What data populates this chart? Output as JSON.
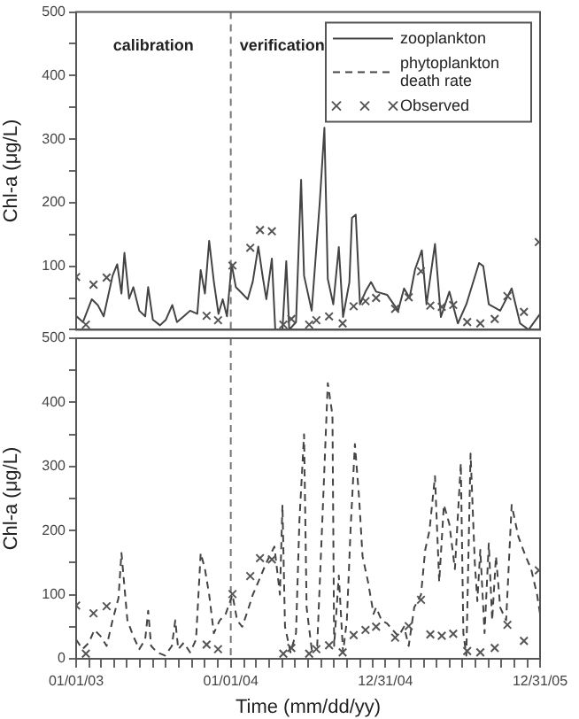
{
  "chart_data": [
    {
      "type": "line",
      "ylabel": "Chl-a (μg/L)",
      "xlim": [
        "2003-01-01",
        "2005-12-31"
      ],
      "ylim": [
        0,
        500
      ],
      "yticks": [
        {
          "value": 0,
          "label": null
        },
        {
          "value": 50,
          "label": null
        },
        100,
        {
          "value": 150,
          "label": null
        },
        200,
        {
          "value": 250,
          "label": null
        },
        300,
        {
          "value": 350,
          "label": null
        },
        400,
        {
          "value": 450,
          "label": null
        },
        500
      ],
      "tick_labels": "y",
      "grid": false,
      "legend": "top right",
      "ref_lines": [
        {
          "axis": "x",
          "value": "2004-01-01",
          "color": "#777777",
          "line_style": "dashed"
        }
      ],
      "annotations": [
        "calibration",
        "verification"
      ],
      "series": [
        {
          "name": "zooplankton",
          "type": "line",
          "line_style": "solid",
          "color": "#444444",
          "x": [
            "2003-01-02",
            "2003-01-17",
            "2003-02-07",
            "2003-02-21",
            "2003-03-07",
            "2003-03-28",
            "2003-04-08",
            "2003-04-18",
            "2003-04-25",
            "2003-05-06",
            "2003-05-16",
            "2003-05-30",
            "2003-06-13",
            "2003-06-20",
            "2003-07-01",
            "2003-07-18",
            "2003-08-01",
            "2003-08-16",
            "2003-08-27",
            "2003-09-12",
            "2003-09-27",
            "2003-10-14",
            "2003-10-22",
            "2003-11-01",
            "2003-11-11",
            "2003-11-22",
            "2003-12-03",
            "2003-12-13",
            "2003-12-23",
            "2004-01-03",
            "2004-01-13",
            "2004-01-28",
            "2004-02-10",
            "2004-02-22",
            "2004-03-06",
            "2004-03-16",
            "2004-03-25",
            "2004-04-07",
            "2004-04-15",
            "2004-05-02",
            "2004-05-11",
            "2004-05-18",
            "2004-06-03",
            "2004-06-15",
            "2004-06-22",
            "2004-07-10",
            "2004-07-29",
            "2004-08-09",
            "2004-08-17",
            "2004-08-30",
            "2004-09-12",
            "2004-09-22",
            "2004-10-07",
            "2004-10-13",
            "2004-10-22",
            "2004-11-01",
            "2004-11-14",
            "2004-11-27",
            "2004-12-09",
            "2005-01-04",
            "2005-01-30",
            "2005-02-13",
            "2005-02-26",
            "2005-03-11",
            "2005-03-27",
            "2005-04-07",
            "2005-04-27",
            "2005-05-11",
            "2005-05-31",
            "2005-06-20",
            "2005-07-10",
            "2005-08-09",
            "2005-08-19",
            "2005-09-01",
            "2005-09-28",
            "2005-10-25",
            "2005-11-14",
            "2005-12-04",
            "2005-12-31"
          ],
          "values": [
            21,
            12,
            48,
            39,
            21,
            85,
            103,
            57,
            121,
            49,
            67,
            30,
            21,
            67,
            16,
            7,
            16,
            39,
            12,
            21,
            30,
            25,
            94,
            57,
            140,
            76,
            25,
            48,
            21,
            103,
            67,
            57,
            48,
            76,
            131,
            85,
            48,
            112,
            0,
            0,
            108,
            0,
            12,
            236,
            85,
            30,
            200,
            318,
            80,
            40,
            130,
            20,
            75,
            176,
            181,
            40,
            60,
            75,
            60,
            55,
            30,
            65,
            50,
            95,
            125,
            40,
            135,
            20,
            60,
            10,
            40,
            105,
            100,
            40,
            30,
            65,
            10,
            0,
            25
          ]
        },
        {
          "name": "Observed",
          "type": "scatter",
          "marker": "cross",
          "color": "#555555",
          "x": [
            "2003-01-01",
            "2003-01-24",
            "2003-02-11",
            "2003-03-14",
            "2003-11-05",
            "2003-12-02",
            "2004-01-05",
            "2004-02-16",
            "2004-03-10",
            "2004-04-07",
            "2004-05-04",
            "2004-05-23",
            "2004-07-04",
            "2004-07-21",
            "2004-08-20",
            "2004-09-21",
            "2004-10-17",
            "2004-11-14",
            "2004-12-09",
            "2005-01-23",
            "2005-02-24",
            "2005-03-25",
            "2005-04-16",
            "2005-05-13",
            "2005-06-09",
            "2005-07-12",
            "2005-08-12",
            "2005-09-15",
            "2005-10-15",
            "2005-11-23",
            "2005-12-28"
          ],
          "values": [
            83,
            8,
            71,
            82,
            22,
            15,
            101,
            129,
            157,
            155,
            8,
            17,
            8,
            15,
            21,
            10,
            37,
            45,
            50,
            33,
            51,
            92,
            38,
            36,
            39,
            12,
            10,
            17,
            53,
            28,
            138
          ]
        }
      ]
    },
    {
      "type": "line",
      "ylabel": "Chl-a (μg/L)",
      "xlabel": "Time (mm/dd/yy)",
      "xlim": [
        "2003-01-01",
        "2005-12-31"
      ],
      "ylim": [
        0,
        500
      ],
      "xticks": [
        {
          "value": "2003-01-01",
          "label": "01/01/03"
        },
        {
          "value": "2003-02-01",
          "label": null
        },
        {
          "value": "2003-03-01",
          "label": null
        },
        {
          "value": "2003-04-01",
          "label": null
        },
        {
          "value": "2003-05-01",
          "label": null
        },
        {
          "value": "2003-06-01",
          "label": null
        },
        {
          "value": "2003-07-01",
          "label": null
        },
        {
          "value": "2003-08-01",
          "label": null
        },
        {
          "value": "2003-09-01",
          "label": null
        },
        {
          "value": "2003-10-01",
          "label": null
        },
        {
          "value": "2003-11-01",
          "label": null
        },
        {
          "value": "2003-12-01",
          "label": null
        },
        {
          "value": "2004-01-01",
          "label": "01/01/04"
        },
        {
          "value": "2004-02-01",
          "label": null
        },
        {
          "value": "2004-03-01",
          "label": null
        },
        {
          "value": "2004-04-01",
          "label": null
        },
        {
          "value": "2004-05-01",
          "label": null
        },
        {
          "value": "2004-06-01",
          "label": null
        },
        {
          "value": "2004-07-01",
          "label": null
        },
        {
          "value": "2004-08-01",
          "label": null
        },
        {
          "value": "2004-09-01",
          "label": null
        },
        {
          "value": "2004-10-01",
          "label": null
        },
        {
          "value": "2004-11-01",
          "label": null
        },
        {
          "value": "2004-12-01",
          "label": null
        },
        {
          "value": "2004-12-31",
          "label": "12/31/04"
        },
        {
          "value": "2005-02-01",
          "label": null
        },
        {
          "value": "2005-03-01",
          "label": null
        },
        {
          "value": "2005-04-01",
          "label": null
        },
        {
          "value": "2005-05-01",
          "label": null
        },
        {
          "value": "2005-06-01",
          "label": null
        },
        {
          "value": "2005-07-01",
          "label": null
        },
        {
          "value": "2005-08-01",
          "label": null
        },
        {
          "value": "2005-09-01",
          "label": null
        },
        {
          "value": "2005-10-01",
          "label": null
        },
        {
          "value": "2005-11-01",
          "label": null
        },
        {
          "value": "2005-12-01",
          "label": null
        },
        {
          "value": "2005-12-31",
          "label": "12/31/05"
        }
      ],
      "yticks": [
        0,
        {
          "value": 50,
          "label": null
        },
        100,
        {
          "value": 150,
          "label": null
        },
        200,
        {
          "value": 250,
          "label": null
        },
        300,
        {
          "value": 350,
          "label": null
        },
        400,
        {
          "value": 450,
          "label": null
        },
        500
      ],
      "grid": false,
      "ref_lines": [
        {
          "axis": "x",
          "value": "2004-01-01",
          "color": "#777777",
          "line_style": "dashed"
        }
      ],
      "series": [
        {
          "name": "phytoplankton death rate",
          "type": "line",
          "line_style": "dashed",
          "color": "#444444",
          "x": [
            "2003-01-01",
            "2003-01-16",
            "2003-01-31",
            "2003-02-13",
            "2003-02-28",
            "2003-03-14",
            "2003-03-28",
            "2003-04-11",
            "2003-04-18",
            "2003-05-02",
            "2003-05-16",
            "2003-05-30",
            "2003-06-13",
            "2003-06-20",
            "2003-06-27",
            "2003-07-11",
            "2003-07-30",
            "2003-08-15",
            "2003-08-23",
            "2003-08-30",
            "2003-09-12",
            "2003-09-27",
            "2003-10-11",
            "2003-10-22",
            "2003-11-01",
            "2003-11-11",
            "2003-11-22",
            "2003-12-06",
            "2003-12-20",
            "2004-01-05",
            "2004-01-16",
            "2004-01-28",
            "2004-02-10",
            "2004-02-22",
            "2004-03-06",
            "2004-03-25",
            "2004-04-13",
            "2004-04-26",
            "2004-05-02",
            "2004-05-08",
            "2004-05-21",
            "2004-06-03",
            "2004-06-11",
            "2004-06-22",
            "2004-06-28",
            "2004-07-10",
            "2004-07-23",
            "2004-08-05",
            "2004-08-17",
            "2004-08-28",
            "2004-09-01",
            "2004-09-12",
            "2004-09-22",
            "2004-10-01",
            "2004-10-10",
            "2004-10-20",
            "2004-10-30",
            "2004-11-07",
            "2004-11-20",
            "2004-12-03",
            "2004-12-09",
            "2004-12-22",
            "2005-01-04",
            "2005-01-17",
            "2005-01-31",
            "2005-02-13",
            "2005-02-24",
            "2005-03-09",
            "2005-03-25",
            "2005-04-04",
            "2005-04-14",
            "2005-04-27",
            "2005-05-07",
            "2005-05-18",
            "2005-05-31",
            "2005-06-13",
            "2005-06-27",
            "2005-07-03",
            "2005-07-10",
            "2005-07-20",
            "2005-07-30",
            "2005-08-05",
            "2005-08-12",
            "2005-08-22",
            "2005-09-01",
            "2005-09-09",
            "2005-09-18",
            "2005-09-28",
            "2005-10-12",
            "2005-10-25",
            "2005-11-10",
            "2005-11-27",
            "2005-12-10",
            "2005-12-24",
            "2005-12-31"
          ],
          "values": [
            30,
            15,
            25,
            45,
            35,
            20,
            60,
            95,
            165,
            60,
            35,
            15,
            30,
            75,
            20,
            10,
            5,
            20,
            60,
            15,
            25,
            10,
            30,
            165,
            140,
            100,
            40,
            60,
            70,
            100,
            60,
            50,
            75,
            100,
            120,
            150,
            175,
            100,
            240,
            50,
            10,
            40,
            215,
            350,
            80,
            15,
            20,
            230,
            430,
            380,
            20,
            130,
            10,
            60,
            205,
            335,
            250,
            160,
            120,
            70,
            80,
            60,
            55,
            45,
            35,
            50,
            20,
            80,
            100,
            170,
            200,
            285,
            120,
            240,
            210,
            140,
            305,
            40,
            5,
            320,
            150,
            90,
            170,
            40,
            180,
            60,
            160,
            80,
            60,
            240,
            190,
            160,
            140,
            100,
            70
          ]
        },
        {
          "type": "scatter",
          "marker": "cross",
          "color": "#555555",
          "x": [
            "2003-01-01",
            "2003-01-24",
            "2003-02-11",
            "2003-03-14",
            "2003-11-05",
            "2003-12-02",
            "2004-01-05",
            "2004-02-16",
            "2004-03-10",
            "2004-04-07",
            "2004-05-04",
            "2004-05-23",
            "2004-07-04",
            "2004-07-21",
            "2004-08-20",
            "2004-09-21",
            "2004-10-17",
            "2004-11-14",
            "2004-12-09",
            "2005-01-23",
            "2005-02-24",
            "2005-03-25",
            "2005-04-16",
            "2005-05-13",
            "2005-06-09",
            "2005-07-12",
            "2005-08-12",
            "2005-09-15",
            "2005-10-15",
            "2005-11-23",
            "2005-12-28"
          ],
          "values": [
            83,
            8,
            71,
            82,
            22,
            15,
            101,
            129,
            157,
            155,
            8,
            17,
            8,
            15,
            21,
            10,
            37,
            45,
            50,
            33,
            51,
            92,
            38,
            36,
            39,
            12,
            10,
            17,
            53,
            28,
            138
          ]
        }
      ]
    }
  ]
}
